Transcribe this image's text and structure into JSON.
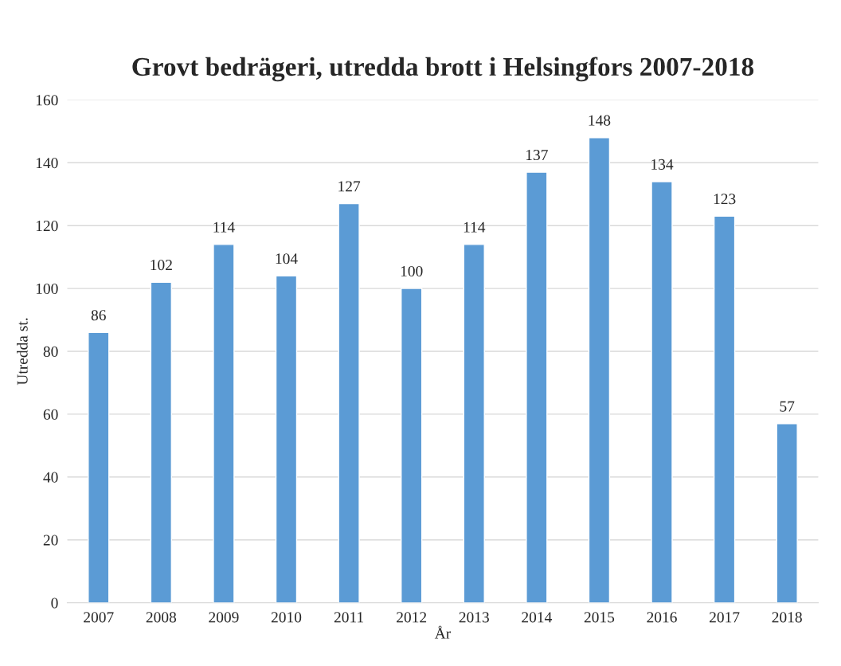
{
  "chart_data": {
    "type": "bar",
    "title": "Grovt bedrägeri, utredda brott i Helsingfors 2007-2018",
    "xlabel": "År",
    "ylabel": "Utredda st.",
    "categories": [
      "2007",
      "2008",
      "2009",
      "2010",
      "2011",
      "2012",
      "2013",
      "2014",
      "2015",
      "2016",
      "2017",
      "2018"
    ],
    "values": [
      86,
      102,
      114,
      104,
      127,
      100,
      114,
      137,
      148,
      134,
      123,
      57
    ],
    "color": "#5b9bd5",
    "ylim": [
      0,
      160
    ],
    "yticks": [
      0,
      20,
      40,
      60,
      80,
      100,
      120,
      140,
      160
    ],
    "grid": "y",
    "data_labels": true,
    "legend": false
  }
}
